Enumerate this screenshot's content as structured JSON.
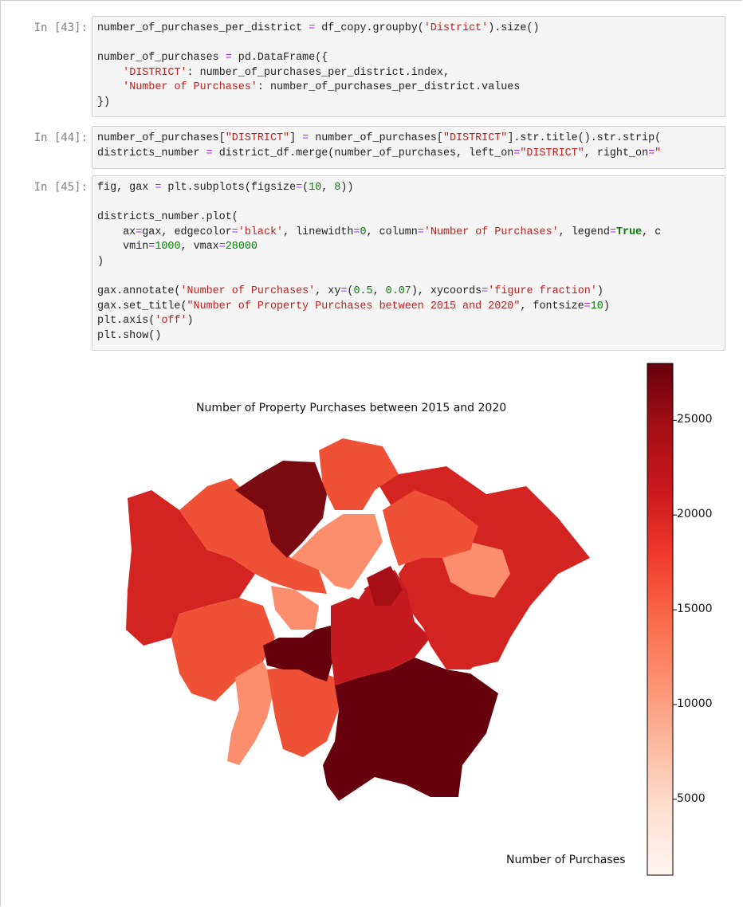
{
  "cells": [
    {
      "prompt": "In [43]:",
      "lines": [
        [
          [
            "number_of_purchases_per_district ",
            "n"
          ],
          [
            "=",
            "o"
          ],
          [
            " df_copy.groupby(",
            "n"
          ],
          [
            "'District'",
            "s"
          ],
          [
            ").size()",
            "n"
          ]
        ],
        [],
        [
          [
            "number_of_purchases ",
            "n"
          ],
          [
            "=",
            "o"
          ],
          [
            " pd.DataFrame({",
            "n"
          ]
        ],
        [
          [
            "    ",
            "n"
          ],
          [
            "'DISTRICT'",
            "s"
          ],
          [
            ": number_of_purchases_per_district.index,",
            "n"
          ]
        ],
        [
          [
            "    ",
            "n"
          ],
          [
            "'Number of Purchases'",
            "s"
          ],
          [
            ": number_of_purchases_per_district.values",
            "n"
          ]
        ],
        [
          [
            "})",
            "n"
          ]
        ]
      ]
    },
    {
      "prompt": "In [44]:",
      "lines": [
        [
          [
            "number_of_purchases[",
            "n"
          ],
          [
            "\"DISTRICT\"",
            "s"
          ],
          [
            "] ",
            "n"
          ],
          [
            "=",
            "o"
          ],
          [
            " number_of_purchases[",
            "n"
          ],
          [
            "\"DISTRICT\"",
            "s"
          ],
          [
            "].str.title().str.strip(",
            "n"
          ]
        ],
        [
          [
            "districts_number ",
            "n"
          ],
          [
            "=",
            "o"
          ],
          [
            " district_df.merge(number_of_purchases, left_on",
            "n"
          ],
          [
            "=",
            "o"
          ],
          [
            "\"DISTRICT\"",
            "s"
          ],
          [
            ", right_on",
            "n"
          ],
          [
            "=",
            "o"
          ],
          [
            "\"",
            "s"
          ]
        ]
      ]
    },
    {
      "prompt": "In [45]:",
      "lines": [
        [
          [
            "fig, gax ",
            "n"
          ],
          [
            "=",
            "o"
          ],
          [
            " plt.subplots(figsize",
            "n"
          ],
          [
            "=",
            "o"
          ],
          [
            "(",
            "n"
          ],
          [
            "10",
            "d"
          ],
          [
            ", ",
            "n"
          ],
          [
            "8",
            "d"
          ],
          [
            "))",
            "n"
          ]
        ],
        [],
        [
          [
            "districts_number.plot(",
            "n"
          ]
        ],
        [
          [
            "    ax",
            "n"
          ],
          [
            "=",
            "o"
          ],
          [
            "gax, edgecolor",
            "n"
          ],
          [
            "=",
            "o"
          ],
          [
            "'black'",
            "s"
          ],
          [
            ", linewidth",
            "n"
          ],
          [
            "=",
            "o"
          ],
          [
            "0",
            "d"
          ],
          [
            ", column",
            "n"
          ],
          [
            "=",
            "o"
          ],
          [
            "'Number of Purchases'",
            "s"
          ],
          [
            ", legend",
            "n"
          ],
          [
            "=",
            "o"
          ],
          [
            "True",
            "k"
          ],
          [
            ", c",
            "n"
          ]
        ],
        [
          [
            "    vmin",
            "n"
          ],
          [
            "=",
            "o"
          ],
          [
            "1000",
            "d"
          ],
          [
            ", vmax",
            "n"
          ],
          [
            "=",
            "o"
          ],
          [
            "28000",
            "d"
          ]
        ],
        [
          [
            ")",
            "n"
          ]
        ],
        [],
        [
          [
            "gax.annotate(",
            "n"
          ],
          [
            "'Number of Purchases'",
            "s"
          ],
          [
            ", xy",
            "n"
          ],
          [
            "=",
            "o"
          ],
          [
            "(",
            "n"
          ],
          [
            "0.5",
            "d"
          ],
          [
            ", ",
            "n"
          ],
          [
            "0.07",
            "d"
          ],
          [
            "), xycoords",
            "n"
          ],
          [
            "=",
            "o"
          ],
          [
            "'figure fraction'",
            "s"
          ],
          [
            ")",
            "n"
          ]
        ],
        [
          [
            "gax.set_title(",
            "n"
          ],
          [
            "\"Number of Property Purchases between 2015 and 2020\"",
            "s"
          ],
          [
            ", fontsize",
            "n"
          ],
          [
            "=",
            "o"
          ],
          [
            "10",
            "d"
          ],
          [
            ")",
            "n"
          ]
        ],
        [
          [
            "plt.axis(",
            "n"
          ],
          [
            "'off'",
            "s"
          ],
          [
            ")",
            "n"
          ]
        ],
        [
          [
            "plt.show()",
            "n"
          ]
        ]
      ]
    }
  ],
  "figure": {
    "title": "Number of Property Purchases between 2015 and 2020",
    "annotation": "Number of Purchases",
    "colormap": "Reds",
    "colorbar": {
      "vmin": 1000,
      "vmax": 28000,
      "ticks": [
        "5000",
        "10000",
        "15000",
        "20000",
        "25000"
      ]
    },
    "colors": {
      "dark": "#67000d",
      "red": "#d42421",
      "mid": "#ef5136",
      "light": "#fc8d6d",
      "pale": "#fff5f0"
    }
  }
}
